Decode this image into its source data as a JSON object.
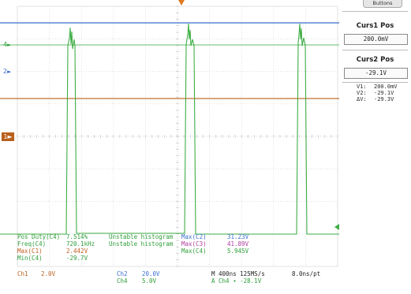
{
  "cursor_panel": {
    "tab_label": "Buttons",
    "curs1_title": "Curs1 Pos",
    "curs1_value": "200.0mV",
    "curs2_title": "Curs2 Pos",
    "curs2_value": "-29.1V",
    "readout": [
      {
        "label": "V1:",
        "value": "200.0mV"
      },
      {
        "label": "V2:",
        "value": "-29.1V"
      },
      {
        "label": "ΔV:",
        "value": "-29.3V"
      }
    ]
  },
  "channel_markers": [
    {
      "label": "4",
      "color": "#2e9e3a"
    },
    {
      "label": "2",
      "color": "#3a6fd0"
    },
    {
      "label": "1",
      "color": "#b85f1c"
    }
  ],
  "measurements": {
    "col1": [
      {
        "label": "Pos Duty(C4)",
        "value": "7.514%",
        "color": "#2e9e3a"
      },
      {
        "label": "Freq(C4)",
        "value": "720.1kHz",
        "color": "#2e9e3a"
      },
      {
        "label": "Max(C1)",
        "value": "2.442V",
        "color": "#c06020"
      },
      {
        "label": "Min(C4)",
        "value": "-29.7V",
        "color": "#2e9e3a"
      }
    ],
    "col2": [
      {
        "text": "Unstable histogram",
        "color": "#2e9e3a"
      },
      {
        "text": "Unstable histogram",
        "color": "#2e9e3a"
      }
    ],
    "col3": [
      {
        "label": "Max(C2)",
        "value": "31.23V",
        "color": "#3a6fd0"
      },
      {
        "label": "Max(C3)",
        "value": "41.89V",
        "color": "#b03aa0"
      },
      {
        "label": "Max(C4)",
        "value": "5.945V",
        "color": "#2e9e3a"
      }
    ]
  },
  "bottom_bar": {
    "ch1": {
      "label": "Ch1",
      "value": "2.0V"
    },
    "ch2": {
      "label": "Ch2",
      "value": "20.0V"
    },
    "ch4": {
      "label": "Ch4",
      "value": "5.0V"
    },
    "timebase": "M 400ns 125MS/s",
    "resolution": "8.0ns/pt",
    "trigger": "A  Ch4  ∙  -28.1V"
  },
  "colors": {
    "ch1": "#c07030",
    "ch2": "#3a6fd0",
    "ch4": "#3fae46",
    "grid": "#d6d6d6",
    "trigger_marker": "#e07a20"
  }
}
